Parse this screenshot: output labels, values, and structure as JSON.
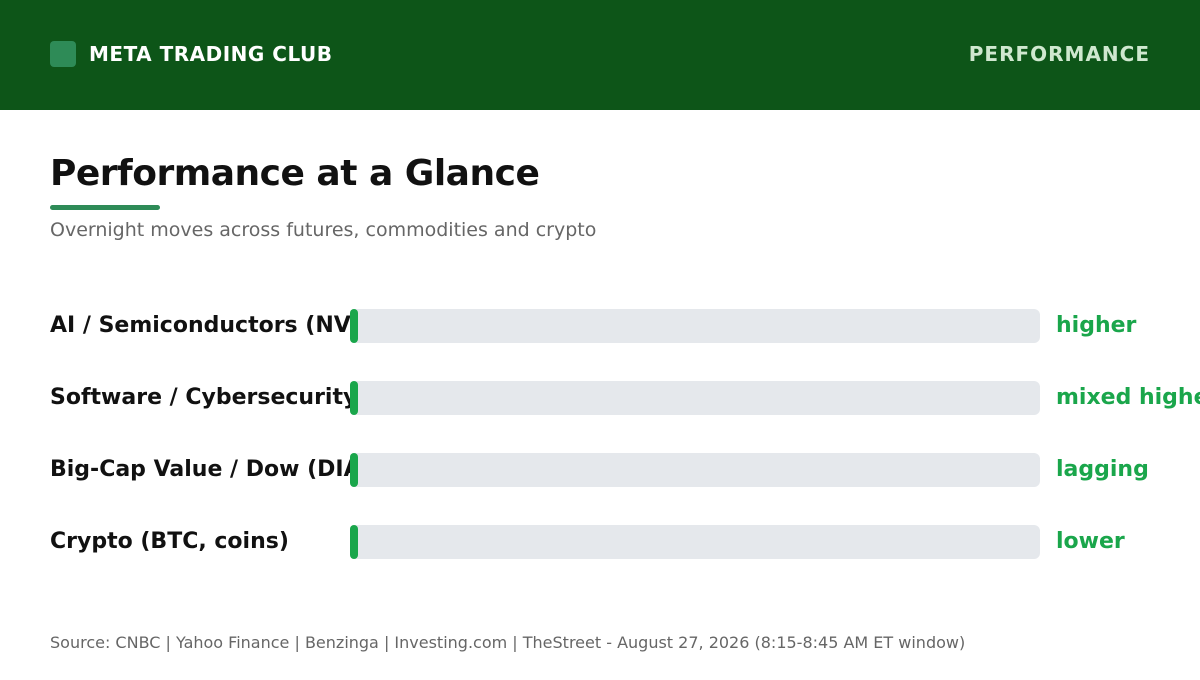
{
  "header": {
    "brand": "META TRADING CLUB",
    "section": "PERFORMANCE"
  },
  "colors": {
    "header_bg": "#0d5518",
    "accent": "#2e8b57",
    "positive": "#1aa64b",
    "track": "#e5e8ec"
  },
  "chart_data": {
    "type": "bar",
    "title": "Performance at a Glance",
    "subtitle": "Overnight moves across futures, commodities and crypto",
    "orientation": "horizontal",
    "grid": false,
    "categories": [
      "AI / Semiconductors (NVDA",
      "Software / Cybersecurity (",
      "Big-Cap Value / Dow (DIA,",
      "Crypto (BTC, coins)"
    ],
    "values": [
      0.01,
      0.01,
      0.01,
      0.01
    ],
    "value_labels": [
      "higher",
      "mixed higher",
      "lagging",
      "lower"
    ],
    "xlim": [
      0,
      1
    ]
  },
  "footer": {
    "source": "Source: CNBC | Yahoo Finance | Benzinga | Investing.com | TheStreet - August 27, 2026 (8:15-8:45 AM ET window)"
  }
}
